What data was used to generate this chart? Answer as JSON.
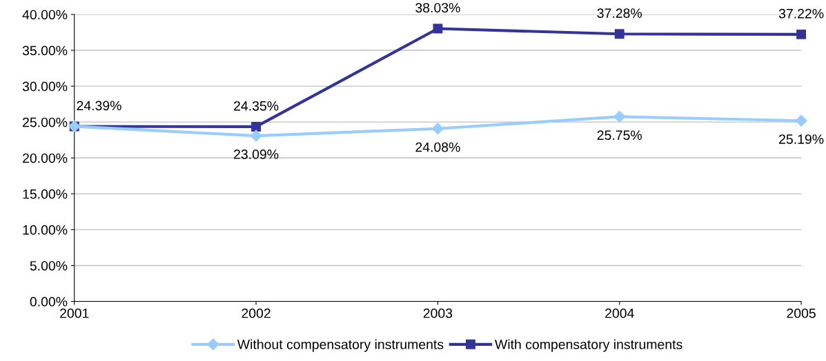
{
  "chart_data": {
    "type": "line",
    "categories": [
      "2001",
      "2002",
      "2003",
      "2004",
      "2005"
    ],
    "series": [
      {
        "name": "Without compensatory instruments",
        "color": "#99ccff",
        "marker": "diamond",
        "values": [
          24.4,
          23.09,
          24.08,
          25.75,
          25.19
        ],
        "value_labels": [
          null,
          "23.09%",
          "24.08%",
          "25.75%",
          "25.19%"
        ]
      },
      {
        "name": "With compensatory instruments",
        "color": "#333399",
        "marker": "square",
        "values": [
          24.39,
          24.35,
          38.03,
          37.28,
          37.22
        ],
        "value_labels": [
          "24.39%",
          "24.35%",
          "38.03%",
          "37.28%",
          "37.22%"
        ]
      }
    ],
    "ylim": [
      0,
      40
    ],
    "yticks": [
      {
        "value": 0,
        "label": "0.00%"
      },
      {
        "value": 5,
        "label": "5.00%"
      },
      {
        "value": 10,
        "label": "10.00%"
      },
      {
        "value": 15,
        "label": "15.00%"
      },
      {
        "value": 20,
        "label": "20.00%"
      },
      {
        "value": 25,
        "label": "25.00%"
      },
      {
        "value": 30,
        "label": "30.00%"
      },
      {
        "value": 35,
        "label": "35.00%"
      },
      {
        "value": 40,
        "label": "40.00%"
      }
    ],
    "grid": "y",
    "legend": "bottom",
    "line_style": "solid"
  }
}
